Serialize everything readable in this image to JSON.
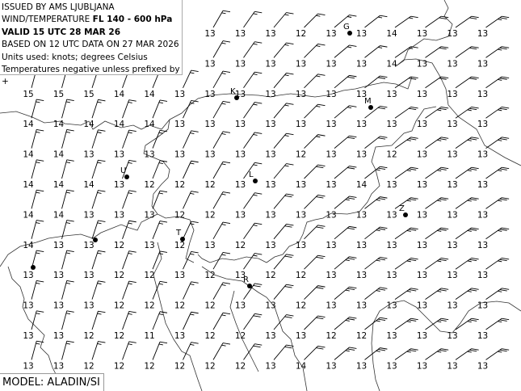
{
  "header": {
    "issued": "ISSUED BY AMS LJUBLJANA",
    "product_prefix": "WIND/TEMPERATURE ",
    "level": "FL 140 - 600 hPa",
    "valid": "VALID 15 UTC 28 MAR 26",
    "based_on": "BASED ON 12 UTC DATA ON 27 MAR 2026",
    "units": "Units used: knots; degrees Celsius",
    "note": "Temperatures negative unless prefixed by +"
  },
  "model_label": "MODEL: ALADIN/SI",
  "stations": [
    {
      "label": "G"
    },
    {
      "label": "K"
    },
    {
      "label": "M"
    },
    {
      "label": "U"
    },
    {
      "label": "L"
    },
    {
      "label": "Z"
    },
    {
      "label": "T"
    },
    {
      "label": "R"
    }
  ],
  "temperatures": [
    [
      null,
      null,
      null,
      null,
      null,
      null,
      13,
      13,
      13,
      12,
      13,
      13,
      14,
      13,
      13,
      13
    ],
    [
      null,
      null,
      null,
      null,
      null,
      null,
      13,
      13,
      13,
      13,
      13,
      13,
      14,
      13,
      13,
      13
    ],
    [
      15,
      15,
      15,
      14,
      14,
      13,
      13,
      13,
      13,
      13,
      13,
      13,
      13,
      13,
      13,
      13
    ],
    [
      14,
      14,
      14,
      14,
      14,
      13,
      13,
      13,
      13,
      13,
      13,
      13,
      13,
      13,
      13,
      13
    ],
    [
      14,
      14,
      13,
      13,
      13,
      13,
      13,
      13,
      13,
      12,
      13,
      13,
      12,
      13,
      13,
      13
    ],
    [
      14,
      14,
      14,
      13,
      12,
      12,
      12,
      13,
      13,
      13,
      13,
      14,
      13,
      13,
      13,
      13
    ],
    [
      14,
      14,
      13,
      13,
      13,
      12,
      12,
      13,
      13,
      13,
      13,
      13,
      13,
      13,
      13,
      13
    ],
    [
      14,
      13,
      13,
      12,
      13,
      12,
      13,
      12,
      13,
      13,
      13,
      13,
      13,
      13,
      13,
      13
    ],
    [
      13,
      13,
      13,
      12,
      12,
      13,
      12,
      13,
      12,
      12,
      13,
      13,
      13,
      13,
      13,
      13
    ],
    [
      13,
      13,
      13,
      12,
      12,
      12,
      12,
      13,
      13,
      12,
      13,
      13,
      13,
      13,
      13,
      13
    ],
    [
      13,
      13,
      12,
      12,
      11,
      13,
      12,
      12,
      13,
      13,
      12,
      12,
      13,
      13,
      13,
      13
    ],
    [
      13,
      13,
      12,
      12,
      12,
      12,
      12,
      12,
      13,
      14,
      13,
      13,
      13,
      13,
      13,
      13
    ]
  ],
  "wind_dir_deg_by_column": [
    15,
    15,
    18,
    20,
    22,
    25,
    30,
    35,
    40,
    45,
    50,
    52,
    55,
    55,
    55,
    55
  ],
  "wind_speed_kt": [
    [
      15,
      15,
      15,
      15,
      15,
      15,
      15,
      15,
      15,
      15,
      15,
      15,
      15,
      20,
      20,
      25
    ],
    [
      15,
      15,
      15,
      15,
      15,
      15,
      15,
      15,
      15,
      15,
      15,
      15,
      15,
      20,
      20,
      25
    ],
    [
      15,
      15,
      15,
      15,
      15,
      15,
      15,
      15,
      15,
      15,
      20,
      20,
      20,
      20,
      20,
      25
    ],
    [
      15,
      15,
      15,
      15,
      15,
      15,
      15,
      15,
      15,
      15,
      15,
      20,
      20,
      25,
      25,
      25
    ],
    [
      15,
      15,
      15,
      15,
      15,
      15,
      15,
      15,
      15,
      15,
      20,
      20,
      25,
      25,
      25,
      25
    ],
    [
      15,
      15,
      15,
      15,
      15,
      15,
      15,
      15,
      15,
      20,
      20,
      25,
      25,
      25,
      25,
      25
    ],
    [
      15,
      15,
      15,
      15,
      15,
      15,
      15,
      15,
      20,
      20,
      25,
      25,
      25,
      25,
      25,
      25
    ],
    [
      15,
      15,
      15,
      15,
      15,
      15,
      15,
      15,
      20,
      20,
      20,
      25,
      25,
      25,
      25,
      25
    ],
    [
      15,
      15,
      15,
      15,
      15,
      15,
      15,
      15,
      20,
      20,
      25,
      25,
      25,
      25,
      25,
      25
    ],
    [
      15,
      15,
      15,
      15,
      15,
      15,
      15,
      20,
      20,
      20,
      25,
      25,
      25,
      25,
      25,
      25
    ],
    [
      15,
      15,
      15,
      15,
      15,
      15,
      15,
      20,
      20,
      20,
      25,
      25,
      25,
      25,
      25,
      25
    ],
    [
      15,
      15,
      15,
      15,
      15,
      15,
      15,
      20,
      20,
      20,
      25,
      25,
      25,
      25,
      25,
      25
    ]
  ]
}
